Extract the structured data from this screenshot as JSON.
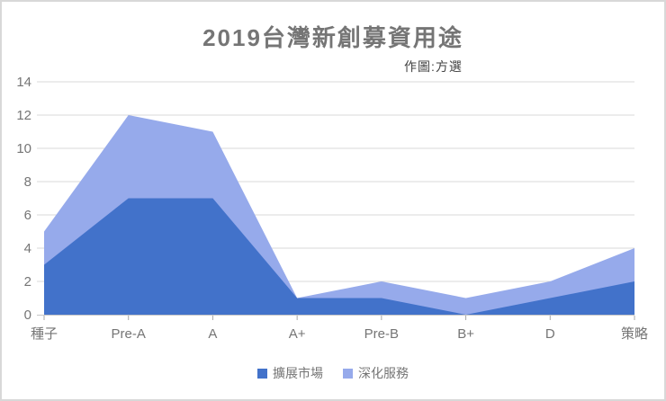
{
  "window": {
    "background": "#ffffff",
    "border_color": "#d8d8d8"
  },
  "chart_data": {
    "type": "area",
    "stacked": true,
    "title": "2019台灣新創募資用途",
    "subtitle": "作圖:方選",
    "categories": [
      "種子",
      "Pre-A",
      "A",
      "A+",
      "Pre-B",
      "B+",
      "D",
      "策略"
    ],
    "series": [
      {
        "name": "擴展市場",
        "color": "#4272ca",
        "values": [
          3,
          7,
          7,
          1,
          1,
          0,
          1,
          2
        ]
      },
      {
        "name": "深化服務",
        "color": "#96aaeb",
        "values": [
          2,
          5,
          4,
          0,
          1,
          1,
          1,
          2
        ]
      }
    ],
    "stacked_totals": [
      5,
      12,
      11,
      1,
      2,
      1,
      2,
      4
    ],
    "xlabel": "",
    "ylabel": "",
    "ylim": [
      0,
      14
    ],
    "yticks": [
      0,
      2,
      4,
      6,
      8,
      10,
      12,
      14
    ],
    "grid": true,
    "legend_position": "bottom",
    "colors": {
      "title_text": "#757575",
      "subtitle_text": "#424242",
      "axis_text": "#757575",
      "legend_text": "#757575",
      "gridline": "#d9d9d9",
      "baseline": "#c6c6c6",
      "tick": "#a8a8a8"
    }
  }
}
